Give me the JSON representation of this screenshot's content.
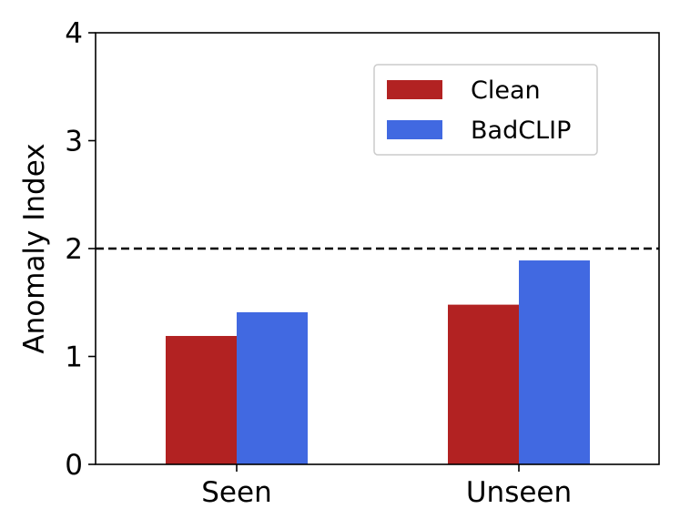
{
  "chart_data": {
    "type": "bar",
    "title": "",
    "xlabel": "",
    "ylabel": "Anomaly Index",
    "categories": [
      "Seen",
      "Unseen"
    ],
    "series": [
      {
        "name": "Clean",
        "values": [
          1.19,
          1.48
        ],
        "color": "#b22222"
      },
      {
        "name": "BadCLIP",
        "values": [
          1.41,
          1.89
        ],
        "color": "#4169e1"
      }
    ],
    "ylim": [
      0,
      4
    ],
    "yticks": [
      "0",
      "1",
      "2",
      "3",
      "4"
    ],
    "reference_line": {
      "y": 2,
      "style": "dashed",
      "color": "#000000"
    },
    "grid": false,
    "legend_position": "upper-right"
  }
}
